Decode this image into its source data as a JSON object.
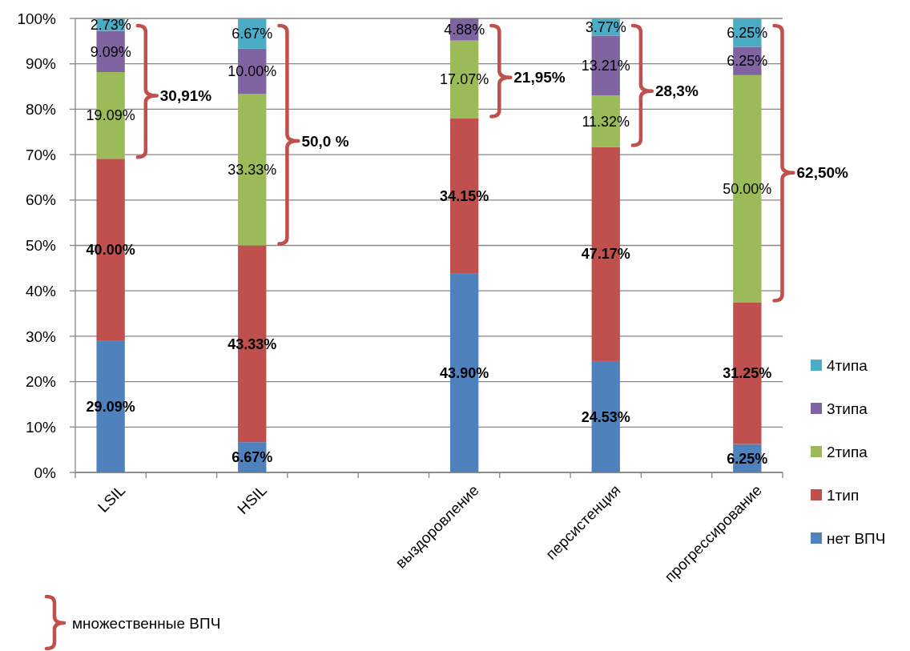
{
  "chart_data": {
    "type": "bar",
    "stacked": true,
    "categories": [
      "LSIL",
      null,
      "HSIL",
      null,
      null,
      "выздоровление",
      null,
      "персистенция",
      null,
      "прогрессирование"
    ],
    "series": [
      {
        "name": "нет ВПЧ",
        "color": "#4f81bd",
        "values": [
          29.09,
          null,
          6.67,
          null,
          null,
          43.9,
          null,
          24.53,
          null,
          6.25
        ],
        "value_labels": [
          "29.09%",
          null,
          "6.67%",
          null,
          null,
          "43.90%",
          null,
          "24.53%",
          null,
          "6.25%"
        ]
      },
      {
        "name": "1тип",
        "color": "#c0504d",
        "values": [
          40.0,
          null,
          43.33,
          null,
          null,
          34.15,
          null,
          47.17,
          null,
          31.25
        ],
        "value_labels": [
          "40.00%",
          null,
          "43.33%",
          null,
          null,
          "34.15%",
          null,
          "47.17%",
          null,
          "31.25%"
        ]
      },
      {
        "name": "2типа",
        "color": "#9bbb59",
        "values": [
          19.09,
          null,
          33.33,
          null,
          null,
          17.07,
          null,
          11.32,
          null,
          50.0
        ],
        "value_labels": [
          "19.09%",
          null,
          "33.33%",
          null,
          null,
          "17.07%",
          null,
          "11.32%",
          null,
          "50.00%"
        ]
      },
      {
        "name": "3типа",
        "color": "#8064a2",
        "values": [
          9.09,
          null,
          10.0,
          null,
          null,
          4.88,
          null,
          13.21,
          null,
          6.25
        ],
        "value_labels": [
          "9.09%",
          null,
          "10.00%",
          null,
          null,
          "4.88%",
          null,
          "13.21%",
          null,
          "6.25%"
        ]
      },
      {
        "name": "4типа",
        "color": "#4bacc6",
        "values": [
          2.73,
          null,
          6.67,
          null,
          null,
          null,
          null,
          3.77,
          null,
          6.25
        ],
        "value_labels": [
          "2.73%",
          null,
          "6.67%",
          null,
          null,
          null,
          null,
          "3.77%",
          null,
          "6.25%"
        ]
      }
    ],
    "ylim": [
      0,
      100
    ],
    "yticks": [
      {
        "value": 0,
        "label": "0%"
      },
      {
        "value": 10,
        "label": "10%"
      },
      {
        "value": 20,
        "label": "20%"
      },
      {
        "value": 30,
        "label": "30%"
      },
      {
        "value": 40,
        "label": "40%"
      },
      {
        "value": 50,
        "label": "50%"
      },
      {
        "value": 60,
        "label": "60%"
      },
      {
        "value": 70,
        "label": "70%"
      },
      {
        "value": 80,
        "label": "80%"
      },
      {
        "value": 90,
        "label": "90%"
      },
      {
        "value": 100,
        "label": "100%"
      }
    ],
    "grid": "y",
    "legend": "right",
    "annotations": [
      {
        "text": "30,91%",
        "x": "LSIL",
        "y": 83
      },
      {
        "text": "50,0 %",
        "x": "HSIL",
        "y": 73
      },
      {
        "text": "21,95%",
        "x": "выздоровление",
        "y": 87
      },
      {
        "text": "28,3%",
        "x": "персистенция",
        "y": 84
      },
      {
        "text": "62,50%",
        "x": "прогрессирование",
        "y": 66
      },
      "множественные ВПЧ"
    ]
  }
}
